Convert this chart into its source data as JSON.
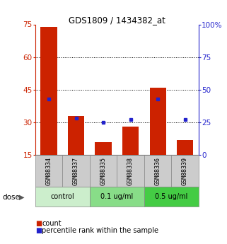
{
  "title": "GDS1809 / 1434382_at",
  "categories": [
    "GSM88334",
    "GSM88337",
    "GSM88335",
    "GSM88338",
    "GSM88336",
    "GSM88339"
  ],
  "counts": [
    74,
    33,
    21,
    28,
    46,
    22
  ],
  "percentiles": [
    43,
    28,
    25,
    27,
    43,
    27
  ],
  "bar_color": "#cc2200",
  "dot_color": "#2222cc",
  "ylim_left": [
    15,
    75
  ],
  "ylim_right": [
    0,
    100
  ],
  "yticks_left": [
    15,
    30,
    45,
    60,
    75
  ],
  "yticks_right": [
    0,
    25,
    50,
    75,
    100
  ],
  "ytick_labels_right": [
    "0",
    "25",
    "50",
    "75",
    "100%"
  ],
  "grid_values": [
    30,
    45,
    60
  ],
  "dose_groups": [
    {
      "label": "control",
      "indices": [
        0,
        1
      ],
      "color": "#cceecc"
    },
    {
      "label": "0.1 ug/ml",
      "indices": [
        2,
        3
      ],
      "color": "#88dd88"
    },
    {
      "label": "0.5 ug/ml",
      "indices": [
        4,
        5
      ],
      "color": "#44cc44"
    }
  ],
  "dose_label": "dose",
  "legend_count_label": "count",
  "legend_percentile_label": "percentile rank within the sample",
  "bar_width": 0.6,
  "background_color": "#ffffff",
  "xticklabel_bg": "#cccccc",
  "xticklabel_border": "#888888"
}
